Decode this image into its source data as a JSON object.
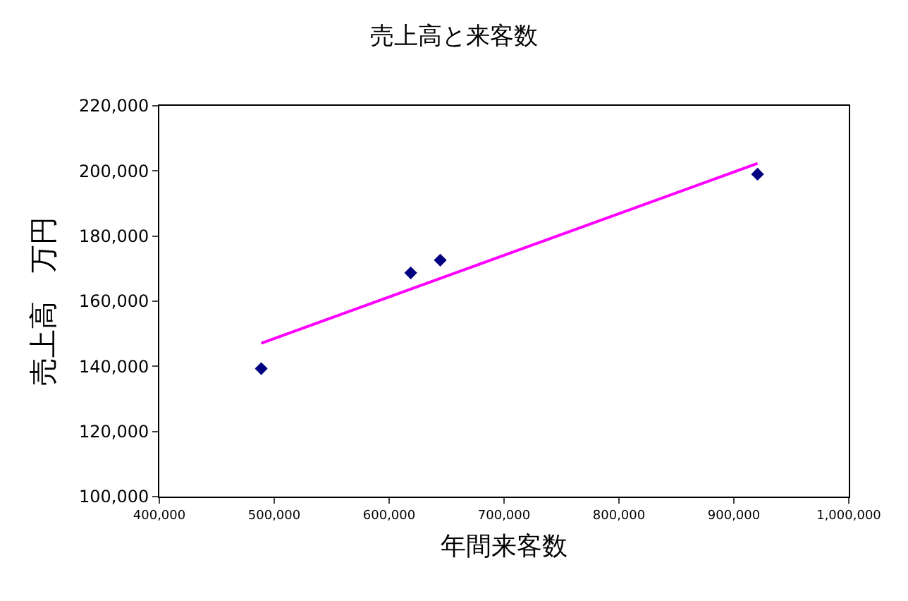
{
  "chart_data": {
    "type": "scatter",
    "title": "売上高と来客数",
    "xlabel": "年間来客数",
    "ylabel": "売上高　万円",
    "xlim": [
      400000,
      1000000
    ],
    "xticks": [
      {
        "value": 400000,
        "label": "400,000"
      },
      {
        "value": 500000,
        "label": "500,000"
      },
      {
        "value": 600000,
        "label": "600,000"
      },
      {
        "value": 700000,
        "label": "700,000"
      },
      {
        "value": 800000,
        "label": "800,000"
      },
      {
        "value": 900000,
        "label": "900,000"
      },
      {
        "value": 1000000,
        "label": "1,000,000"
      }
    ],
    "ylim": [
      100000,
      220000
    ],
    "yticks": [
      {
        "value": 100000,
        "label": "100,000"
      },
      {
        "value": 120000,
        "label": "120,000"
      },
      {
        "value": 140000,
        "label": "140,000"
      },
      {
        "value": 160000,
        "label": "160,000"
      },
      {
        "value": 180000,
        "label": "180,000"
      },
      {
        "value": 200000,
        "label": "200,000"
      },
      {
        "value": 220000,
        "label": "220,000"
      }
    ],
    "grid": false,
    "marker": "diamond",
    "series": [
      {
        "color": "#000080",
        "x": [
          488700,
          618800,
          644500,
          920600
        ],
        "values": [
          139300,
          168700,
          172600,
          199000
        ]
      },
      {
        "type": "line",
        "color": "#ff00ff",
        "marker": "none",
        "x": [
          488700,
          920600
        ],
        "values": [
          147100,
          202300
        ]
      }
    ]
  }
}
